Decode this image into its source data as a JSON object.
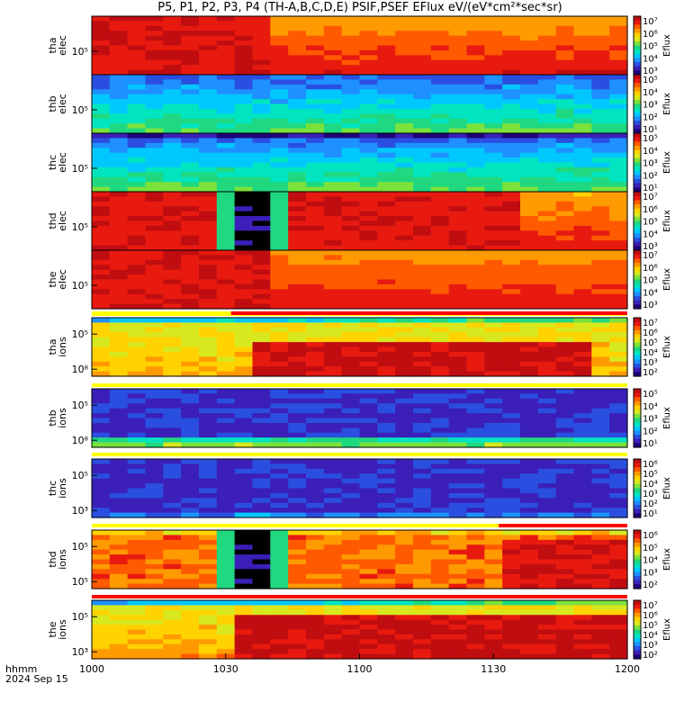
{
  "title": "P5, P1, P2, P3, P4  (TH-A,B,C,D,E) PSIF,PSEF EFlux eV/(eV*cm²*sec*sr)",
  "footer": {
    "hhmm": "hhmm",
    "date": "2024 Sep 15"
  },
  "x_ticks": [
    "1000",
    "1030",
    "1100",
    "1130",
    "1200"
  ],
  "colorbar_label": "Eflux",
  "palette": [
    "#1f0078",
    "#3b1fb8",
    "#2a4fe0",
    "#1e90ff",
    "#00c8ff",
    "#00e5c0",
    "#20d880",
    "#7be23c",
    "#d8e81f",
    "#ffd200",
    "#ff9a00",
    "#ff5a00",
    "#e81a10",
    "#c00d10"
  ],
  "chart_data": [
    {
      "type": "heatmap",
      "panel": "tha-elec",
      "ylabel": [
        "tha",
        "elec"
      ],
      "yticks": [
        "10⁵"
      ],
      "cbar_ticks": [
        "10⁷",
        "10⁶",
        "10⁵",
        "10⁴",
        "10³"
      ]
    },
    {
      "type": "heatmap",
      "panel": "thb-elec",
      "ylabel": [
        "thb",
        "elec"
      ],
      "yticks": [
        "10⁵"
      ],
      "cbar_ticks": [
        "10⁵",
        "10⁴",
        "10³",
        "10²",
        "10¹"
      ]
    },
    {
      "type": "heatmap",
      "panel": "thc-elec",
      "ylabel": [
        "thc",
        "elec"
      ],
      "yticks": [
        "10⁵"
      ],
      "cbar_ticks": [
        "10⁵",
        "10⁴",
        "10³",
        "10²",
        "10¹"
      ]
    },
    {
      "type": "heatmap",
      "panel": "thd-elec",
      "ylabel": [
        "thd",
        "elec"
      ],
      "yticks": [
        "10⁵"
      ],
      "cbar_ticks": [
        "10⁷",
        "10⁶",
        "10⁵",
        "10⁴",
        "10³"
      ]
    },
    {
      "type": "heatmap",
      "panel": "the-elec",
      "ylabel": [
        "the",
        "elec"
      ],
      "yticks": [
        "10⁵"
      ],
      "cbar_ticks": [
        "10⁷",
        "10⁶",
        "10⁵",
        "10⁴",
        "10³"
      ]
    },
    {
      "type": "heatmap",
      "panel": "tha-ions",
      "ylabel": [
        "tha",
        "ions"
      ],
      "yticks": [
        "10⁵",
        "10⁸"
      ],
      "cbar_ticks": [
        "10⁷",
        "10⁶",
        "10⁵",
        "10⁴",
        "10³",
        "10²"
      ]
    },
    {
      "type": "heatmap",
      "panel": "thb-ions",
      "ylabel": [
        "thb",
        "ions"
      ],
      "yticks": [
        "10⁵",
        "10⁸"
      ],
      "cbar_ticks": [
        "10⁵",
        "10⁴",
        "10³",
        "10²",
        "10¹"
      ]
    },
    {
      "type": "heatmap",
      "panel": "thc-ions",
      "ylabel": [
        "thc",
        "ions"
      ],
      "yticks": [
        "10⁵",
        "10³"
      ],
      "cbar_ticks": [
        "10⁶",
        "10⁵",
        "10⁴",
        "10³",
        "10²",
        "10¹"
      ]
    },
    {
      "type": "heatmap",
      "panel": "thd-ions",
      "ylabel": [
        "thd",
        "ions"
      ],
      "yticks": [
        "10⁵",
        "10⁵"
      ],
      "cbar_ticks": [
        "10⁶",
        "10⁵",
        "10⁴",
        "10³",
        "10²"
      ]
    },
    {
      "type": "heatmap",
      "panel": "the-ions",
      "ylabel": [
        "the",
        "ions"
      ],
      "yticks": [
        "10⁵",
        "10³"
      ],
      "cbar_ticks": [
        "10⁷",
        "10⁶",
        "10⁵",
        "10⁴",
        "10³",
        "10²"
      ]
    }
  ]
}
